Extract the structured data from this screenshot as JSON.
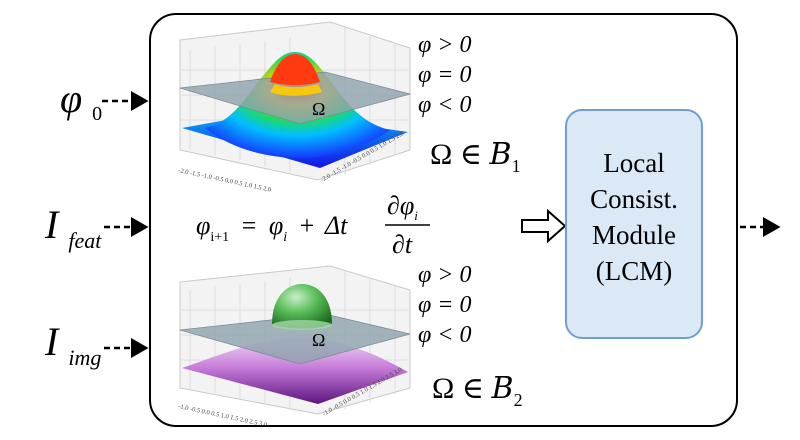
{
  "inputs": [
    {
      "symbol": "φ",
      "sub": "0"
    },
    {
      "symbol": "I",
      "sub": "feat"
    },
    {
      "symbol": "I",
      "sub": "img"
    }
  ],
  "top_plot": {
    "legend": [
      "φ > 0",
      "φ = 0",
      "φ < 0"
    ],
    "omega_label": "Ω",
    "set_label": {
      "lhs": "Ω ∈ ",
      "set": "B",
      "sub": "1"
    },
    "x_ticks": "-2.0 -1.5 -1.0 -0.5 0.0 0.5 1.0 1.5 2.0",
    "y_ticks": "-2.0 -1.5 -1.0 -0.5 0.0 0.5 1.0 1.5 2.0",
    "colormap": [
      "#1a1aff",
      "#00bfff",
      "#22dd55",
      "#ffee00",
      "#ff2200"
    ]
  },
  "bottom_plot": {
    "legend": [
      "φ > 0",
      "φ = 0",
      "φ < 0"
    ],
    "omega_label": "Ω",
    "set_label": {
      "lhs": "Ω ∈ ",
      "set": "B",
      "sub": "2"
    },
    "x_ticks": "-1.0 -0.5 0.0 0.5 1.0 1.5 2.0 2.5 3.0",
    "y_ticks": "-1.0 -0.5 0.0 0.5 1.0 1.5 2.0 2.5 3.0",
    "colormap": [
      "#6a1b9a",
      "#c77dd9",
      "#2e7d32",
      "#a5d6a7"
    ]
  },
  "equation": {
    "lhs": "φ",
    "lhs_sub": "i+1",
    "eq": "=",
    "rhs1": "φ",
    "rhs1_sub": "i",
    "plus": "+",
    "delta_t": "Δt",
    "num_d": "∂",
    "num_phi": "φ",
    "num_sub": "i",
    "den": "∂t"
  },
  "module": {
    "lines": [
      "Local",
      "Consist.",
      "Module",
      "(LCM)"
    ],
    "fill": "#dbe9f7",
    "stroke": "#6f9fd0"
  }
}
